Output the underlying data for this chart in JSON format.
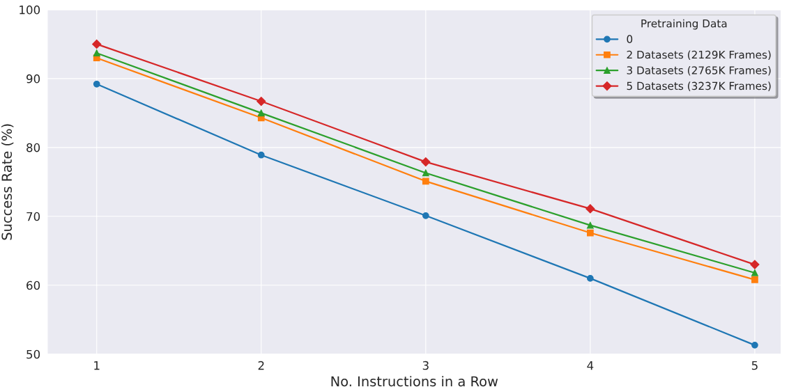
{
  "chart_data": {
    "type": "line",
    "xlabel": "No. Instructions in a Row",
    "ylabel": "Success Rate (%)",
    "legend_title": "Pretraining Data",
    "x": [
      1,
      2,
      3,
      4,
      5
    ],
    "xlim": [
      0.7,
      5.16
    ],
    "xticks": [
      1,
      2,
      3,
      4,
      5
    ],
    "ylim": [
      50,
      100
    ],
    "yticks": [
      50,
      60,
      70,
      80,
      90,
      100
    ],
    "grid": true,
    "legend": "top right",
    "line_style": "solid",
    "series": [
      {
        "name": "0",
        "color": "#1f77b4",
        "marker": "circle",
        "values": [
          89.2,
          78.9,
          70.1,
          61.0,
          51.3
        ]
      },
      {
        "name": "2 Datasets (2129K Frames)",
        "color": "#ff7f0e",
        "marker": "square",
        "values": [
          93.0,
          84.3,
          75.1,
          67.6,
          60.8
        ]
      },
      {
        "name": "3 Datasets (2765K Frames)",
        "color": "#2ca02c",
        "marker": "triangle",
        "values": [
          93.7,
          85.0,
          76.3,
          68.7,
          61.8
        ]
      },
      {
        "name": "5 Datasets (3237K Frames)",
        "color": "#d62728",
        "marker": "diamond",
        "values": [
          95.0,
          86.7,
          77.9,
          71.1,
          63.0
        ]
      }
    ]
  }
}
